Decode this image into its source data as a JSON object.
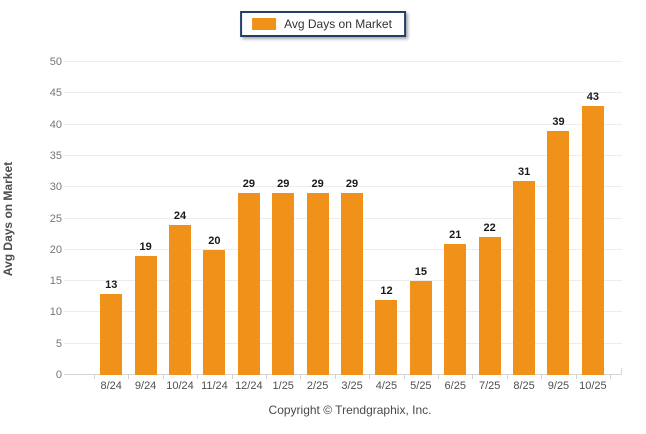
{
  "legend": {
    "label": "Avg Days on Market"
  },
  "chart_data": {
    "type": "bar",
    "title": "",
    "categories": [
      "8/24",
      "9/24",
      "10/24",
      "11/24",
      "12/24",
      "1/25",
      "2/25",
      "3/25",
      "4/25",
      "5/25",
      "6/25",
      "7/25",
      "8/25",
      "9/25",
      "10/25"
    ],
    "values": [
      13,
      19,
      24,
      20,
      29,
      29,
      29,
      29,
      12,
      15,
      21,
      22,
      31,
      39,
      43
    ],
    "xlabel": "",
    "ylabel": "Avg Days on Market",
    "ylim": [
      0,
      50
    ],
    "yticks": [
      0,
      5,
      10,
      15,
      20,
      25,
      30,
      35,
      40,
      45,
      50
    ],
    "grid": true,
    "legend_position": "top-center",
    "bar_color": "#F0921A",
    "value_labels": true
  },
  "footer": {
    "copyright": "Copyright © Trendgraphix, Inc."
  },
  "colors": {
    "bar": "#F0921A",
    "legend_border": "#1f4068",
    "gridline": "#ececec",
    "axis_line": "#d6d6d6",
    "value_label": "#1a1a1a",
    "y_tick_label": "#757575",
    "x_tick_label": "#4f4f4f",
    "background": "#ffffff"
  }
}
